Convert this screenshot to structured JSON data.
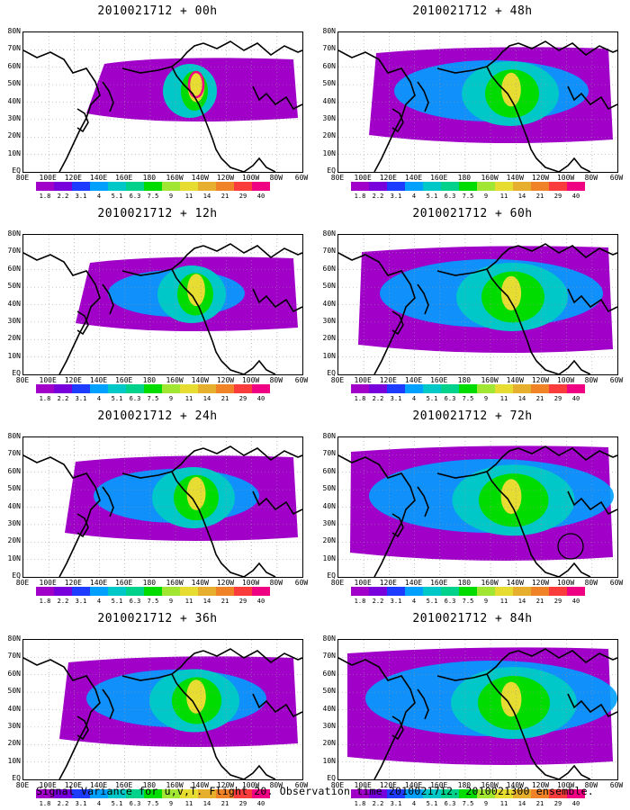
{
  "panels": [
    {
      "title": "2010021712 + 00h",
      "spread": 0.0,
      "intensity": 0.55,
      "col": 0,
      "row": 0
    },
    {
      "title": "2010021712 + 48h",
      "spread": 0.6,
      "intensity": 0.8,
      "col": 1,
      "row": 0
    },
    {
      "title": "2010021712 + 12h",
      "spread": 0.2,
      "intensity": 0.65,
      "col": 0,
      "row": 1
    },
    {
      "title": "2010021712 + 60h",
      "spread": 0.8,
      "intensity": 0.85,
      "col": 1,
      "row": 1
    },
    {
      "title": "2010021712 + 24h",
      "spread": 0.4,
      "intensity": 0.75,
      "col": 0,
      "row": 2
    },
    {
      "title": "2010021712 + 72h",
      "spread": 0.95,
      "intensity": 0.9,
      "col": 1,
      "row": 2
    },
    {
      "title": "2010021712 + 36h",
      "spread": 0.5,
      "intensity": 0.8,
      "col": 0,
      "row": 3
    },
    {
      "title": "2010021712 + 84h",
      "spread": 1.0,
      "intensity": 0.9,
      "col": 1,
      "row": 3
    }
  ],
  "lat_labels": [
    "80N",
    "70N",
    "60N",
    "50N",
    "40N",
    "30N",
    "20N",
    "10N",
    "EQ"
  ],
  "lon_labels": [
    "80E",
    "100E",
    "120E",
    "140E",
    "160E",
    "180",
    "160W",
    "140W",
    "120W",
    "100W",
    "80W",
    "60W"
  ],
  "colorbar": {
    "labels": [
      "1.8",
      "2.2",
      "3.1",
      "4",
      "5.1",
      "6.3",
      "7.5",
      "9",
      "11",
      "14",
      "21",
      "29",
      "40"
    ],
    "colors": [
      "#a000c8",
      "#7800dc",
      "#1e3cff",
      "#00a0ff",
      "#00c8c8",
      "#00d28c",
      "#00dc00",
      "#a0e632",
      "#e6dc32",
      "#e6af2d",
      "#f08228",
      "#fa3c3c",
      "#f00082"
    ]
  },
  "caption": "Signal Variance for u,v,T. Flight 20. Observation time 2010021712. 2010021300 ensemble."
}
